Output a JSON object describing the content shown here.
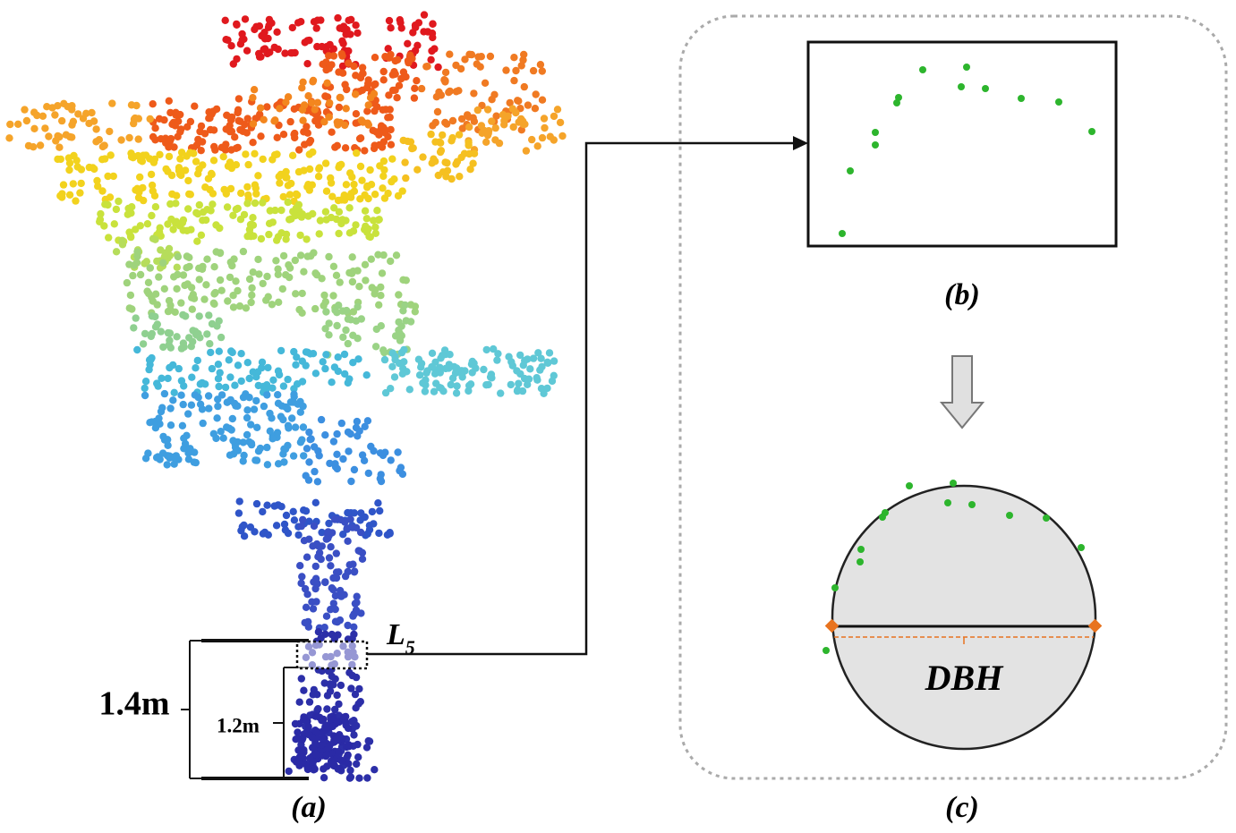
{
  "labels": {
    "a": "(a)",
    "b": "(b)",
    "c": "(c)",
    "height_14": "1.4m",
    "height_12": "1.2m",
    "layer": "L",
    "layer_index": "5",
    "dbh": "DBH"
  }
}
